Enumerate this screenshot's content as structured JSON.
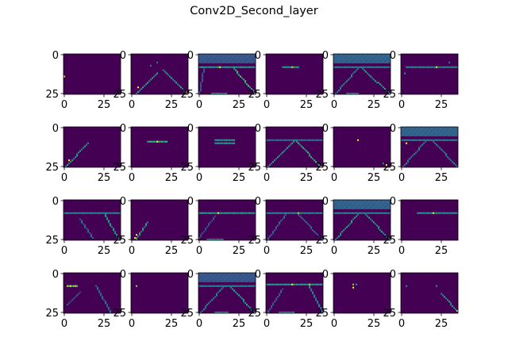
{
  "chart_data": {
    "type": "heatmap",
    "title": "Conv2D_Second_layer",
    "grid": false,
    "colormap": "viridis",
    "layout": {
      "rows": 4,
      "cols": 6
    },
    "image_shape": [
      26,
      36
    ],
    "xticks": [
      0,
      25
    ],
    "yticks": [
      0,
      25
    ],
    "value_range": [
      0,
      1
    ],
    "panels": [
      {
        "points": [
          [
            14,
            0,
            1
          ]
        ]
      },
      {
        "diags": [
          [
            26,
            2,
            12,
            16,
            0.6
          ],
          [
            10,
            20,
            25,
            35,
            0.6
          ]
        ],
        "points": [
          [
            21,
            4,
            1
          ],
          [
            5,
            16,
            0.4
          ],
          [
            7,
            12,
            0.4
          ],
          [
            24,
            34,
            1
          ]
        ]
      },
      {
        "band": [
          0,
          5,
          0.3
        ],
        "hlines": [
          [
            8,
            0,
            35,
            0.6
          ]
        ],
        "diags": [
          [
            9,
            22,
            26,
            36,
            0.75
          ],
          [
            9,
            3,
            26,
            0,
            0.3
          ]
        ],
        "points": [
          [
            8,
            13,
            1
          ]
        ],
        "hlines2": [
          [
            25,
            8,
            17,
            0.6
          ]
        ]
      },
      {
        "hlines": [
          [
            8,
            10,
            20,
            0.6
          ]
        ],
        "points": [
          [
            8,
            16,
            0.9
          ]
        ]
      },
      {
        "band": [
          0,
          5,
          0.35
        ],
        "hlines": [
          [
            8,
            0,
            35,
            0.5
          ],
          [
            25,
            8,
            15,
            0.6
          ]
        ],
        "diags": [
          [
            9,
            18,
            26,
            36,
            0.6
          ],
          [
            9,
            15,
            26,
            0,
            0.5
          ]
        ]
      },
      {
        "hlines": [
          [
            8,
            3,
            35,
            0.5
          ]
        ],
        "points": [
          [
            8,
            22,
            1
          ],
          [
            12,
            2,
            0.5
          ],
          [
            5,
            30,
            0.4
          ]
        ]
      },
      {
        "diags": [
          [
            26,
            0,
            10,
            15,
            0.6
          ]
        ],
        "points": [
          [
            21,
            3,
            1
          ]
        ]
      },
      {
        "hlines": [
          [
            9,
            10,
            22,
            0.7
          ]
        ],
        "points": [
          [
            9,
            16,
            1
          ]
        ]
      },
      {
        "hlines": [
          [
            8,
            10,
            22,
            0.6
          ],
          [
            10,
            10,
            22,
            0.6
          ]
        ]
      },
      {
        "hlines": [
          [
            8,
            0,
            35,
            0.4
          ]
        ],
        "diags": [
          [
            8,
            18,
            26,
            35,
            0.7
          ],
          [
            8,
            18,
            26,
            0,
            0.6
          ]
        ],
        "points": [
          [
            25,
            34,
            1
          ]
        ]
      },
      {
        "points": [
          [
            8,
            15,
            1
          ],
          [
            24,
            33,
            1
          ],
          [
            23,
            31,
            0.6
          ]
        ]
      },
      {
        "band": [
          0,
          5,
          0.35
        ],
        "hlines": [
          [
            8,
            0,
            35,
            0.5
          ]
        ],
        "diags": [
          [
            9,
            20,
            26,
            36,
            0.5
          ],
          [
            9,
            15,
            26,
            0,
            0.5
          ]
        ],
        "points": [
          [
            10,
            3,
            1
          ]
        ]
      },
      {
        "hlines": [
          [
            8,
            0,
            35,
            0.5
          ]
        ],
        "diags": [
          [
            8,
            25,
            26,
            35,
            0.6
          ],
          [
            12,
            10,
            24,
            18,
            0.4
          ]
        ]
      },
      {
        "diags": [
          [
            26,
            2,
            14,
            10,
            0.6
          ]
        ],
        "points": [
          [
            22,
            3,
            1
          ],
          [
            24,
            2,
            1
          ]
        ]
      },
      {
        "hlines": [
          [
            8,
            0,
            35,
            0.6
          ],
          [
            25,
            5,
            15,
            0.6
          ]
        ],
        "points": [
          [
            8,
            12,
            1
          ]
        ],
        "diags": [
          [
            10,
            10,
            24,
            0,
            0.3
          ]
        ]
      },
      {
        "hlines": [
          [
            8,
            0,
            35,
            0.5
          ]
        ],
        "diags": [
          [
            9,
            20,
            26,
            36,
            0.4
          ],
          [
            9,
            12,
            26,
            0,
            0.4
          ]
        ],
        "points": [
          [
            8,
            20,
            0.9
          ]
        ]
      },
      {
        "band": [
          0,
          5,
          0.35
        ],
        "hlines": [
          [
            8,
            0,
            35,
            0.5
          ]
        ],
        "diags": [
          [
            9,
            20,
            26,
            36,
            0.6
          ],
          [
            9,
            15,
            26,
            0,
            0.6
          ]
        ]
      },
      {
        "hlines": [
          [
            8,
            10,
            35,
            0.55
          ]
        ],
        "points": [
          [
            8,
            20,
            1
          ]
        ]
      },
      {
        "hlines": [
          [
            8,
            2,
            8,
            0.9
          ]
        ],
        "diags": [
          [
            8,
            20,
            26,
            30,
            0.4
          ],
          [
            12,
            10,
            20,
            2,
            0.3
          ]
        ],
        "points": [
          [
            8,
            4,
            1
          ]
        ]
      },
      {
        "points": [
          [
            8,
            3,
            0.8
          ]
        ]
      },
      {
        "band": [
          0,
          5,
          0.3
        ],
        "hlines": [
          [
            8,
            0,
            35,
            0.5
          ],
          [
            25,
            10,
            18,
            0.6
          ]
        ],
        "diags": [
          [
            9,
            20,
            26,
            36,
            0.65
          ],
          [
            9,
            15,
            26,
            0,
            0.5
          ]
        ]
      },
      {
        "hlines": [
          [
            7,
            0,
            35,
            0.6
          ],
          [
            25,
            8,
            17,
            0.6
          ]
        ],
        "diags": [
          [
            7,
            26,
            26,
            36,
            0.5
          ],
          [
            10,
            10,
            26,
            0,
            0.35
          ]
        ],
        "points": [
          [
            7,
            16,
            1
          ],
          [
            7,
            27,
            0.9
          ]
        ]
      },
      {
        "points": [
          [
            7,
            12,
            0.8
          ],
          [
            9,
            12,
            1
          ],
          [
            7,
            14,
            0.5
          ]
        ]
      },
      {
        "diags": [
          [
            13,
            25,
            26,
            37,
            0.6
          ]
        ],
        "points": [
          [
            24,
            35,
            1
          ],
          [
            25,
            36,
            1
          ],
          [
            8,
            3,
            0.5
          ],
          [
            8,
            22,
            0.5
          ]
        ]
      }
    ]
  }
}
